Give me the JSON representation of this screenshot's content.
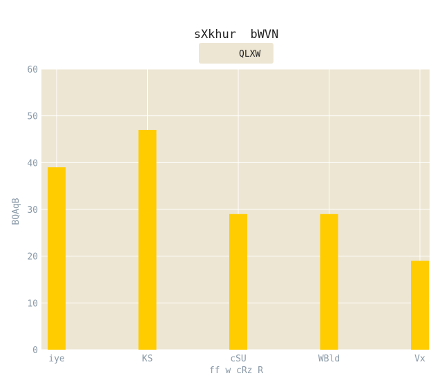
{
  "colors": {
    "plot_background": "#ede6d3",
    "gridline": "#ffffff",
    "bar": "#ffcc00",
    "legend_background": "#ede6d3",
    "tick_text": "#8a9aa8",
    "title_text": "#222222"
  },
  "chart_data": {
    "type": "bar",
    "title": "sXkhur  bWVN",
    "xlabel": "ff w cRz R",
    "ylabel": "BQAqB",
    "categories": [
      "iye",
      "KS",
      "cSU",
      "WBld",
      "Vx"
    ],
    "series": [
      {
        "name": "QLXW",
        "values": [
          39,
          47,
          29,
          29,
          19
        ]
      }
    ],
    "ylim": [
      0,
      60
    ],
    "yticks": [
      0,
      10,
      20,
      30,
      40,
      50,
      60
    ],
    "grid": true,
    "legend_position": "top-center"
  }
}
